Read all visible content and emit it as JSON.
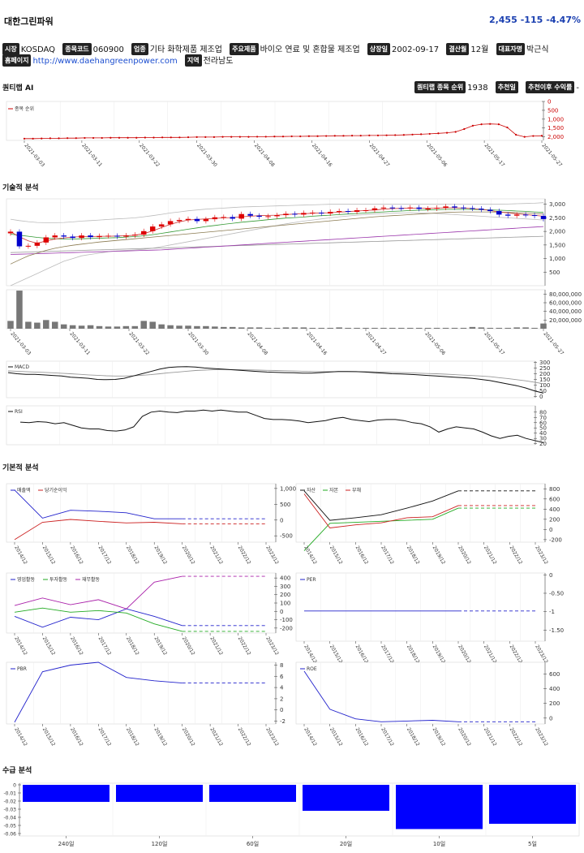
{
  "company": {
    "name": "대한그린파워",
    "price": "2,455",
    "change": "-115",
    "change_pct": "-4.47%"
  },
  "info": {
    "market_label": "시장",
    "market": "KOSDAQ",
    "code_label": "종목코드",
    "code": "060900",
    "industry_label": "업종",
    "industry": "기타 화학제품 제조업",
    "product_label": "주요제품",
    "product": "바이오 연료 및 혼합물 제조업",
    "listed_label": "상장일",
    "listed": "2002-09-17",
    "settle_label": "결산월",
    "settle": "12월",
    "ceo_label": "대표자명",
    "ceo": "박근식",
    "homepage_label": "홈페이지",
    "homepage": "http://www.daehangreenpower.com",
    "region_label": "지역",
    "region": "전라남도"
  },
  "sections": {
    "quantum": "퀀티랩 AI",
    "technical": "기술적 분석",
    "fundamental": "기본적 분석",
    "supply": "수급 분석"
  },
  "quantum_bar": {
    "rank_label": "퀀티랩 종목 순위",
    "rank": "1938",
    "rec_date_label": "추천일",
    "rec_return_label": "추천이후 수익률",
    "rec_return": "-"
  },
  "dates": [
    "2021-03-03",
    "2021-03-11",
    "2021-03-22",
    "2021-03-30",
    "2021-04-08",
    "2021-04-16",
    "2021-04-27",
    "2021-05-06",
    "2021-05-17",
    "2021-05-27"
  ],
  "years": [
    "2014/12",
    "2015/12",
    "2016/12",
    "2017/12",
    "2018/12",
    "2019/12",
    "2020/12",
    "2021/12",
    "2022/12",
    "2023/12"
  ],
  "chart_data": [
    {
      "id": "rank",
      "type": "line",
      "legend": "종목 순위",
      "yticks": [
        "0",
        "500",
        "1,000",
        "1,500",
        "2,000"
      ],
      "ylim": [
        2200,
        0
      ],
      "values": [
        2100,
        2100,
        2090,
        2080,
        2080,
        2070,
        2070,
        2060,
        2060,
        2060,
        2050,
        2050,
        2050,
        2050,
        2040,
        2040,
        2030,
        2030,
        2030,
        2020,
        2010,
        2010,
        2010,
        2000,
        2000,
        2000,
        2000,
        1990,
        1990,
        1980,
        1980,
        1970,
        1970,
        1960,
        1960,
        1950,
        1940,
        1940,
        1930,
        1930,
        1920,
        1920,
        1910,
        1900,
        1890,
        1870,
        1850,
        1830,
        1800,
        1770,
        1720,
        1560,
        1370,
        1290,
        1270,
        1290,
        1470,
        1880,
        2000,
        1950,
        1938
      ],
      "color": "#cc0000"
    },
    {
      "id": "price",
      "type": "candlestick",
      "yticks": [
        "500",
        "1,000",
        "1,500",
        "2,000",
        "2,500",
        "3,000"
      ],
      "ylim": [
        0,
        3200
      ],
      "close": [
        1990,
        1450,
        1470,
        1590,
        1780,
        1850,
        1810,
        1760,
        1850,
        1790,
        1830,
        1840,
        1810,
        1850,
        1880,
        2010,
        2180,
        2260,
        2380,
        2420,
        2460,
        2380,
        2450,
        2520,
        2530,
        2470,
        2640,
        2580,
        2540,
        2560,
        2600,
        2650,
        2620,
        2680,
        2690,
        2660,
        2720,
        2750,
        2720,
        2780,
        2780,
        2850,
        2880,
        2860,
        2850,
        2880,
        2830,
        2840,
        2870,
        2920,
        2880,
        2860,
        2840,
        2800,
        2750,
        2620,
        2580,
        2620,
        2600,
        2570,
        2455
      ],
      "ma5": [
        1990,
        1800,
        1650,
        1560,
        1650,
        1720,
        1760,
        1790,
        1810,
        1810,
        1820,
        1820,
        1830,
        1840,
        1860,
        1920,
        2020,
        2140,
        2260,
        2350,
        2420,
        2440,
        2460,
        2480,
        2500,
        2510,
        2540,
        2560,
        2580,
        2590,
        2600,
        2620,
        2640,
        2650,
        2670,
        2680,
        2690,
        2710,
        2730,
        2750,
        2770,
        2790,
        2820,
        2840,
        2850,
        2860,
        2860,
        2860,
        2860,
        2870,
        2870,
        2860,
        2840,
        2810,
        2770,
        2720,
        2680,
        2650,
        2620,
        2590,
        2560
      ],
      "ma20": [
        1900,
        1860,
        1820,
        1780,
        1750,
        1730,
        1720,
        1720,
        1730,
        1740,
        1750,
        1760,
        1770,
        1790,
        1810,
        1840,
        1880,
        1930,
        1980,
        2030,
        2080,
        2130,
        2180,
        2220,
        2260,
        2300,
        2340,
        2370,
        2400,
        2430,
        2460,
        2490,
        2510,
        2530,
        2560,
        2580,
        2600,
        2620,
        2640,
        2660,
        2680,
        2700,
        2720,
        2740,
        2750,
        2770,
        2780,
        2790,
        2800,
        2810,
        2810,
        2810,
        2810,
        2800,
        2790,
        2780,
        2770,
        2750,
        2740,
        2720,
        2700
      ],
      "ma60": [
        800,
        950,
        1100,
        1200,
        1300,
        1380,
        1440,
        1490,
        1530,
        1570,
        1610,
        1640,
        1670,
        1700,
        1730,
        1760,
        1790,
        1820,
        1850,
        1880,
        1910,
        1940,
        1970,
        2000,
        2030,
        2060,
        2090,
        2120,
        2150,
        2180,
        2210,
        2240,
        2270,
        2300,
        2330,
        2360,
        2390,
        2420,
        2450,
        2480,
        2510,
        2540,
        2560,
        2580,
        2600,
        2620,
        2640,
        2660,
        2680,
        2700,
        2710,
        2720,
        2720,
        2720,
        2720,
        2710,
        2700,
        2690,
        2680,
        2660,
        2640
      ],
      "ma120": [
        1150,
        1160,
        1170,
        1180,
        1190,
        1200,
        1210,
        1220,
        1230,
        1240,
        1250,
        1260,
        1270,
        1280,
        1290,
        1300,
        1310,
        1320,
        1340,
        1360,
        1380,
        1400,
        1420,
        1440,
        1460,
        1480,
        1500,
        1520,
        1540,
        1560,
        1580,
        1600,
        1620,
        1640,
        1660,
        1680,
        1700,
        1720,
        1740,
        1760,
        1780,
        1800,
        1820,
        1840,
        1860,
        1880,
        1900,
        1920,
        1940,
        1960,
        1980,
        2000,
        2020,
        2040,
        2060,
        2080,
        2100,
        2120,
        2140,
        2160,
        2180
      ],
      "ma240": [
        1220,
        1230,
        1240,
        1250,
        1260,
        1270,
        1280,
        1290,
        1300,
        1310,
        1320,
        1330,
        1340,
        1350,
        1360,
        1370,
        1380,
        1390,
        1400,
        1410,
        1420,
        1430,
        1440,
        1450,
        1460,
        1470,
        1480,
        1490,
        1500,
        1510,
        1520,
        1530,
        1540,
        1550,
        1560,
        1570,
        1580,
        1590,
        1600,
        1610,
        1620,
        1630,
        1640,
        1650,
        1660,
        1670,
        1680,
        1690,
        1700,
        1710,
        1720,
        1730,
        1740,
        1750,
        1760,
        1770,
        1780,
        1790,
        1800,
        1810,
        1820
      ],
      "bollinger_upper": [
        2450,
        2400,
        2360,
        2330,
        2320,
        2320,
        2330,
        2350,
        2380,
        2400,
        2420,
        2440,
        2460,
        2480,
        2500,
        2540,
        2580,
        2630,
        2680,
        2720,
        2760,
        2790,
        2820,
        2840,
        2860,
        2880,
        2900,
        2910,
        2920,
        2930,
        2940,
        2950,
        2960,
        2970,
        2980,
        2990,
        3000,
        3000,
        3000,
        3000,
        3000,
        3000,
        3000,
        3000,
        3000,
        3000,
        3000,
        3000,
        3000,
        3000,
        3000,
        3000,
        3000,
        3000,
        3000,
        3000,
        3010,
        3020,
        3030,
        3040,
        3060
      ],
      "bollinger_lower": [
        0,
        150,
        300,
        450,
        600,
        750,
        900,
        1000,
        1100,
        1150,
        1200,
        1250,
        1280,
        1300,
        1320,
        1340,
        1380,
        1440,
        1500,
        1560,
        1620,
        1680,
        1740,
        1800,
        1860,
        1920,
        1980,
        2040,
        2100,
        2160,
        2220,
        2280,
        2330,
        2380,
        2420,
        2460,
        2500,
        2540,
        2570,
        2600,
        2620,
        2640,
        2660,
        2670,
        2680,
        2690,
        2680,
        2670,
        2660,
        2640,
        2620,
        2600,
        2580,
        2560,
        2540,
        2520,
        2500,
        2480,
        2460,
        2440,
        2420
      ]
    },
    {
      "id": "volume",
      "type": "bar",
      "yticks": [
        "20,000,000",
        "40,000,000",
        "60,000,000",
        "80,000,000"
      ],
      "ylim": [
        0,
        90000000
      ],
      "values": [
        18000000,
        88000000,
        16000000,
        14000000,
        20000000,
        16000000,
        10000000,
        8000000,
        7000000,
        8000000,
        6000000,
        5000000,
        5000000,
        6000000,
        6000000,
        18000000,
        16000000,
        10000000,
        8000000,
        7000000,
        7000000,
        6000000,
        6000000,
        5000000,
        4000000,
        4000000,
        3000000,
        3000000,
        3000000,
        2000000,
        2000000,
        3000000,
        3000000,
        3000000,
        2000000,
        2000000,
        2000000,
        3000000,
        2000000,
        2000000,
        2000000,
        2000000,
        2000000,
        2000000,
        2000000,
        2000000,
        2000000,
        2000000,
        2000000,
        2000000,
        2000000,
        2000000,
        4000000,
        3000000,
        2000000,
        2000000,
        2000000,
        3000000,
        3000000,
        2000000,
        12000000
      ]
    },
    {
      "id": "macd",
      "type": "line",
      "legend": "MACD",
      "yticks": [
        "0",
        "50",
        "100",
        "150",
        "200",
        "250",
        "300"
      ],
      "ylim": [
        -10,
        310
      ],
      "values": [
        210,
        200,
        195,
        195,
        190,
        185,
        180,
        170,
        165,
        160,
        150,
        148,
        150,
        160,
        180,
        200,
        220,
        240,
        255,
        260,
        262,
        258,
        250,
        245,
        240,
        235,
        230,
        225,
        220,
        215,
        212,
        210,
        208,
        205,
        205,
        210,
        215,
        220,
        220,
        218,
        215,
        210,
        205,
        200,
        198,
        195,
        190,
        185,
        180,
        175,
        170,
        165,
        160,
        150,
        140,
        125,
        110,
        95,
        75,
        50,
        30
      ],
      "signal": [
        225,
        222,
        218,
        215,
        212,
        208,
        204,
        200,
        195,
        190,
        186,
        182,
        180,
        180,
        182,
        186,
        192,
        200,
        208,
        215,
        222,
        228,
        232,
        235,
        236,
        236,
        235,
        234,
        232,
        230,
        228,
        226,
        224,
        222,
        220,
        218,
        218,
        218,
        218,
        218,
        218,
        216,
        214,
        212,
        210,
        208,
        205,
        202,
        200,
        196,
        192,
        188,
        184,
        180,
        174,
        166,
        158,
        148,
        138,
        126,
        112
      ]
    },
    {
      "id": "rsi",
      "type": "line",
      "legend": "RSI",
      "yticks": [
        "20",
        "30",
        "40",
        "50",
        "60",
        "70",
        "80"
      ],
      "ylim": [
        18,
        92
      ],
      "values": [
        61,
        60,
        62,
        61,
        58,
        60,
        55,
        50,
        48,
        48,
        45,
        44,
        46,
        52,
        72,
        80,
        82,
        80,
        79,
        82,
        82,
        84,
        82,
        84,
        82,
        80,
        80,
        74,
        68,
        66,
        66,
        65,
        63,
        60,
        62,
        64,
        68,
        70,
        66,
        64,
        62,
        65,
        66,
        66,
        64,
        60,
        58,
        52,
        42,
        48,
        52,
        50,
        48,
        42,
        35,
        30,
        34,
        36,
        30,
        26,
        22
      ]
    },
    {
      "id": "revenue",
      "type": "line",
      "legend": [
        "매출액",
        "당기순이익"
      ],
      "yticks": [
        "-500",
        "0",
        "500",
        "1,000"
      ],
      "ylim": [
        -700,
        1150
      ],
      "series": [
        {
          "name": "매출액",
          "values": [
            950,
            60,
            310,
            280,
            230,
            40,
            40,
            40,
            40,
            40
          ],
          "color": "#2222cc"
        },
        {
          "name": "당기순이익",
          "values": [
            -620,
            -70,
            20,
            -40,
            -90,
            -70,
            -120,
            -120,
            -120,
            -120
          ],
          "color": "#cc2222"
        }
      ]
    },
    {
      "id": "assets",
      "type": "line",
      "legend": [
        "자산",
        "자본",
        "부채"
      ],
      "yticks": [
        "-200",
        "0",
        "200",
        "400",
        "600",
        "800"
      ],
      "ylim": [
        -250,
        900
      ],
      "series": [
        {
          "name": "자산",
          "values": [
            760,
            180,
            230,
            290,
            420,
            560,
            760,
            760,
            760,
            760
          ],
          "color": "#111111"
        },
        {
          "name": "자본",
          "values": [
            -420,
            120,
            140,
            160,
            180,
            200,
            420,
            420,
            420,
            420
          ],
          "color": "#22aa22"
        },
        {
          "name": "부채",
          "values": [
            700,
            30,
            90,
            130,
            230,
            250,
            470,
            470,
            470,
            470
          ],
          "color": "#cc2222"
        }
      ]
    },
    {
      "id": "cashflow",
      "type": "line",
      "legend": [
        "영업활동",
        "투자활동",
        "재무활동"
      ],
      "yticks": [
        "-200",
        "-100",
        "0",
        "100",
        "200",
        "300",
        "400"
      ],
      "ylim": [
        -260,
        460
      ],
      "series": [
        {
          "name": "영업활동",
          "values": [
            -60,
            -190,
            -70,
            -100,
            30,
            -60,
            -170,
            -170,
            -170,
            -170
          ],
          "color": "#2222cc"
        },
        {
          "name": "투자활동",
          "values": [
            -10,
            40,
            -10,
            10,
            -20,
            -150,
            -240,
            -240,
            -240,
            -240
          ],
          "color": "#22aa22"
        },
        {
          "name": "재무활동",
          "values": [
            70,
            160,
            80,
            140,
            30,
            350,
            420,
            420,
            420,
            420
          ],
          "color": "#aa22aa"
        }
      ]
    },
    {
      "id": "per",
      "type": "line",
      "legend": "PER",
      "yticks": [
        "-1.50",
        "-1",
        "-0.50",
        "0"
      ],
      "ylim": [
        -1.8,
        0.05
      ],
      "values": [
        -0.98,
        -0.98,
        -0.98,
        -0.98,
        -0.98,
        -0.98,
        -0.98,
        -0.98,
        -0.98,
        -0.98
      ],
      "color": "#2222cc"
    },
    {
      "id": "pbr",
      "type": "line",
      "legend": "PBR",
      "yticks": [
        "-2",
        "0",
        "2",
        "4",
        "6",
        "8"
      ],
      "ylim": [
        -2.5,
        8.5
      ],
      "values": [
        -2.2,
        6.8,
        8.0,
        8.5,
        5.8,
        5.2,
        4.8,
        4.8,
        4.8,
        4.8
      ],
      "color": "#2222cc"
    },
    {
      "id": "roe",
      "type": "line",
      "legend": "ROE",
      "yticks": [
        "0",
        "200",
        "400",
        "600"
      ],
      "ylim": [
        -80,
        760
      ],
      "values": [
        640,
        120,
        -10,
        -50,
        -40,
        -30,
        -50,
        -50,
        -50,
        -50
      ],
      "color": "#2222cc"
    },
    {
      "id": "supply",
      "type": "bar",
      "categories": [
        "240일",
        "120일",
        "60일",
        "20일",
        "10일",
        "5일"
      ],
      "yticks": [
        "0",
        "-0.01",
        "-0.02",
        "-0.03",
        "-0.04",
        "-0.05",
        "-0.06"
      ],
      "ylim": [
        -0.063,
        0.002
      ],
      "values": [
        -0.021,
        -0.021,
        -0.021,
        -0.032,
        -0.0545,
        -0.048
      ],
      "color": "#0000ff"
    }
  ]
}
